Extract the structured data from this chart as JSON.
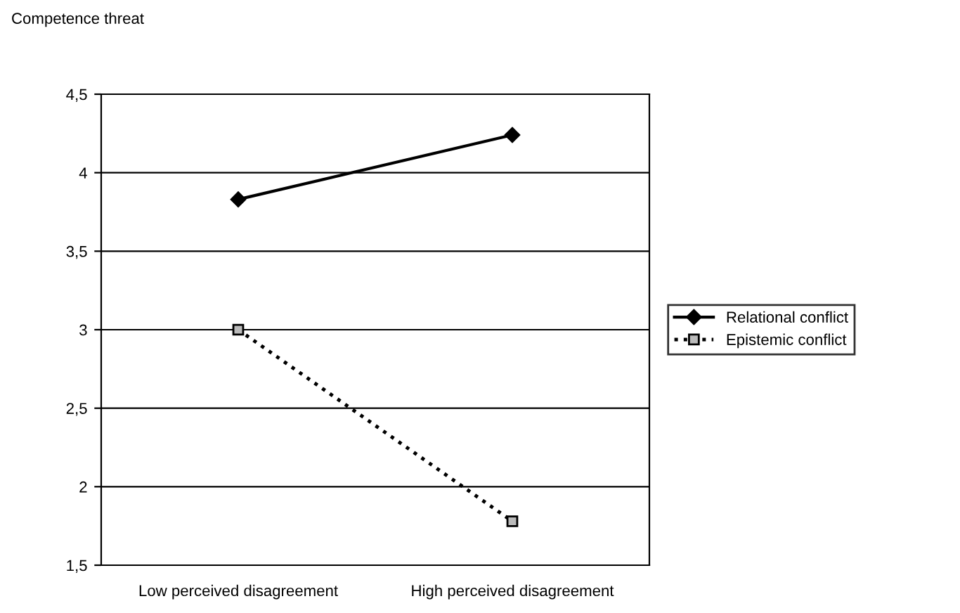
{
  "chart_data": {
    "type": "line",
    "ylabel": "Competence threat",
    "categories": [
      "Low perceived disagreement",
      "High perceived disagreement"
    ],
    "series": [
      {
        "name": "Relational conflict",
        "color": "#000000",
        "values": [
          3.83,
          4.24
        ],
        "marker": "diamond",
        "line_style": "solid"
      },
      {
        "name": "Epistemic conflict",
        "color": "#000000",
        "values": [
          3.0,
          1.78
        ],
        "marker": "square",
        "line_style": "dotted"
      }
    ],
    "ylim": [
      1.5,
      4.5
    ],
    "yticks": [
      {
        "value": 1.5,
        "label": "1,5"
      },
      2,
      {
        "value": 2.5,
        "label": "2,5"
      },
      3,
      {
        "value": 3.5,
        "label": "3,5"
      },
      4,
      {
        "value": 4.5,
        "label": "4,5"
      }
    ],
    "grid": "y",
    "legend": "right"
  }
}
